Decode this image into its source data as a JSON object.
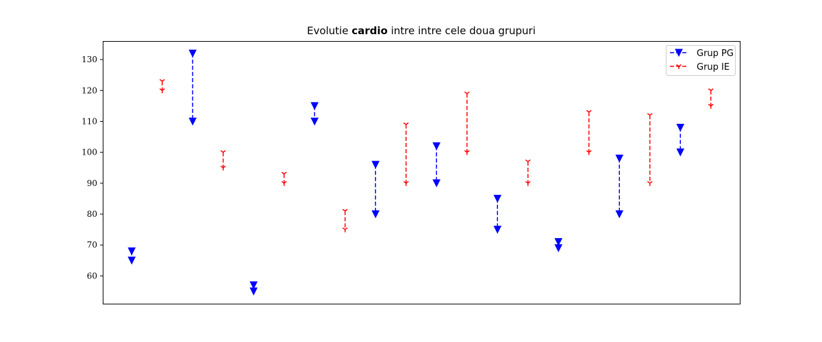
{
  "chart_data": {
    "type": "line",
    "title_parts": {
      "prefix": "Evolutie ",
      "bold": "cardio",
      "suffix": " intre intre cele doua grupuri"
    },
    "xlabel": "",
    "ylabel": "",
    "ylim": [
      51,
      136
    ],
    "yticks": [
      60,
      70,
      80,
      90,
      100,
      110,
      120,
      130
    ],
    "xticks_visible": false,
    "grid": false,
    "legend_position": "top-right",
    "series": [
      {
        "name": "Grup PG",
        "color": "#0000ff",
        "linestyle": "dashed",
        "marker": "triangle-down",
        "x": [
          0,
          2,
          4,
          6,
          8,
          10,
          12,
          14,
          16,
          18
        ],
        "start": [
          68,
          132,
          57,
          115,
          96,
          102,
          85,
          71,
          98,
          108
        ],
        "end": [
          65,
          110,
          55,
          110,
          80,
          90,
          75,
          69,
          80,
          100
        ]
      },
      {
        "name": "Grup IE",
        "color": "#ff0000",
        "linestyle": "dashed",
        "marker": "tri-down",
        "x": [
          1,
          3,
          5,
          7,
          9,
          11,
          13,
          15,
          17,
          19
        ],
        "start": [
          123,
          100,
          93,
          81,
          109,
          119,
          97,
          113,
          112,
          120
        ],
        "end": [
          120,
          95,
          90,
          75,
          90,
          100,
          90,
          100,
          90,
          115
        ]
      }
    ]
  }
}
